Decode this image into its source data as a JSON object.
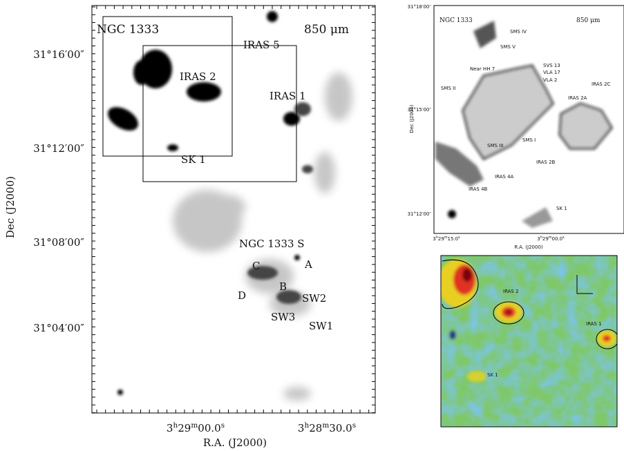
{
  "left_panel": {
    "title": "NGC 1333",
    "wavelength": "850 μm",
    "dec_label": "Dec (J2000)",
    "ra_label": "R.A. (J2000)",
    "dec_ticks": [
      "31°16′00″",
      "31°12′00″",
      "31°08′00″",
      "31°04′00″"
    ],
    "ra_ticks": [
      [
        "3",
        "h",
        "29",
        "m",
        "00.0",
        "s"
      ],
      [
        "3",
        "h",
        "28",
        "m",
        "30.0",
        "s"
      ]
    ],
    "sources": [
      "IRAS 5",
      "IRAS 2",
      "IRAS 1",
      "SK 1",
      "NGC 1333 S",
      "A",
      "B",
      "C",
      "D",
      "SW2",
      "SW3",
      "SW1"
    ]
  },
  "top_right_panel": {
    "title": "NGC 1333",
    "wavelength": "850 μm",
    "dec_label": "Dec (J2000)",
    "ra_label": "R.A. (J2000)",
    "dec_ticks": [
      "31°18′00″",
      "31°15′00″",
      "31°12′00″"
    ],
    "ra_ticks": [
      [
        "3",
        "h",
        "29",
        "m",
        "15.0",
        "s"
      ],
      [
        "3",
        "h",
        "29",
        "m",
        "00.0",
        "s"
      ]
    ],
    "sources": [
      "SMS IV",
      "SMS V",
      "SVS 13",
      "VLA 17",
      "VLA 2",
      "Near HH 7",
      "SMS II",
      "IRAS 2C",
      "IRAS 2A",
      "SMS III",
      "SMS I",
      "IRAS 2B",
      "IRAS 4A",
      "IRAS 4B",
      "SK 1"
    ]
  },
  "bottom_right_panel": {
    "sources": [
      "IRAS 2",
      "IRAS 1",
      "SK 1"
    ]
  }
}
